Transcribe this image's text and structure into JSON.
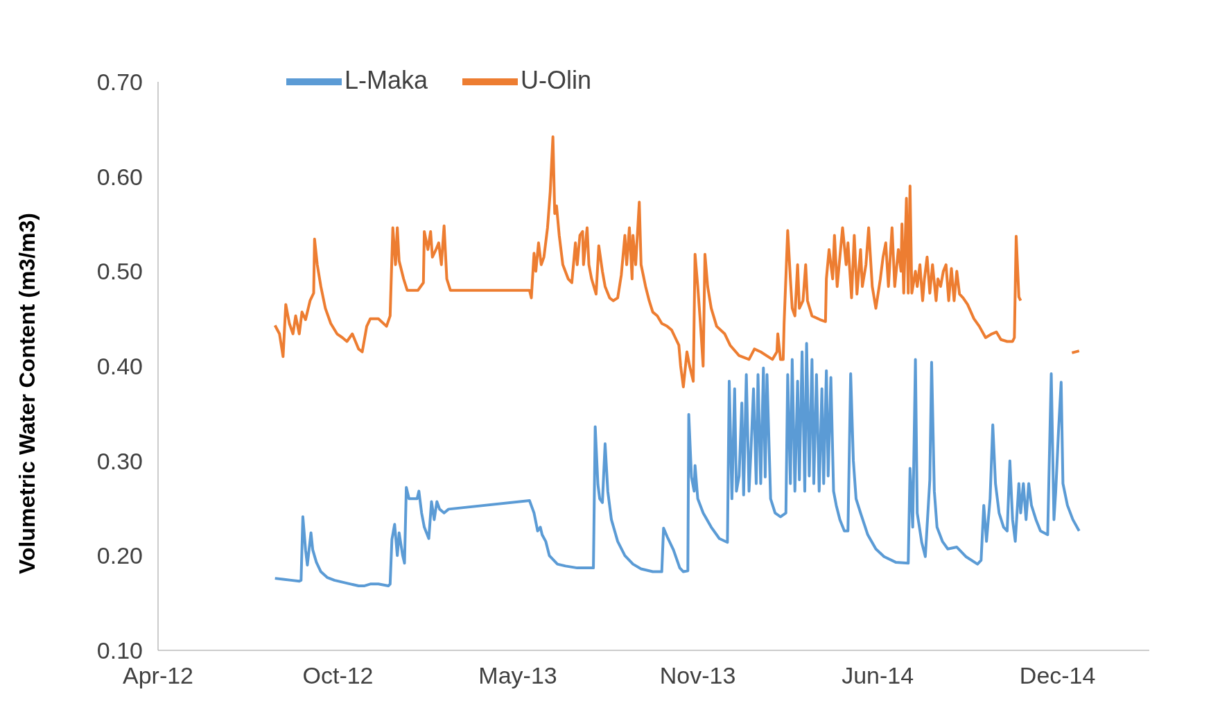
{
  "chart_data": {
    "type": "line",
    "ylabel": "Volumetric Water Content (m3/m3)",
    "xlim": [
      "2012-04-01",
      "2015-04-08"
    ],
    "xticks": [
      {
        "value": "2012-04-01",
        "label": "Apr-12"
      },
      {
        "value": "2012-10-18",
        "label": "Oct-12"
      },
      {
        "value": "2013-05-06",
        "label": "May-13"
      },
      {
        "value": "2013-11-22",
        "label": "Nov-13"
      },
      {
        "value": "2014-06-10",
        "label": "Jun-14"
      },
      {
        "value": "2014-12-27",
        "label": "Dec-14"
      }
    ],
    "ylim": [
      0.1,
      0.7
    ],
    "yticks": [
      {
        "value": 0.1,
        "label": "0.10"
      },
      {
        "value": 0.2,
        "label": "0.20"
      },
      {
        "value": 0.3,
        "label": "0.30"
      },
      {
        "value": 0.4,
        "label": "0.40"
      },
      {
        "value": 0.5,
        "label": "0.50"
      },
      {
        "value": 0.6,
        "label": "0.60"
      },
      {
        "value": 0.7,
        "label": "0.70"
      }
    ],
    "grid": false,
    "legend": "top",
    "marker": "none",
    "line_style": "solid",
    "series": [
      {
        "name": "L-Maka",
        "color": "#5b9bd5",
        "x": [
          "2012-08-09",
          "2012-08-18",
          "2012-08-27",
          "2012-09-05",
          "2012-09-07",
          "2012-09-09",
          "2012-09-12",
          "2012-09-14",
          "2012-09-18",
          "2012-09-20",
          "2012-09-24",
          "2012-09-29",
          "2012-10-06",
          "2012-10-14",
          "2012-10-23",
          "2012-11-01",
          "2012-11-10",
          "2012-11-16",
          "2012-11-23",
          "2012-12-02",
          "2012-12-13",
          "2012-12-15",
          "2012-12-17",
          "2012-12-20",
          "2012-12-23",
          "2012-12-25",
          "2012-12-29",
          "2012-12-31",
          "2013-01-02",
          "2013-01-05",
          "2013-01-09",
          "2013-01-14",
          "2013-01-16",
          "2013-01-19",
          "2013-01-22",
          "2013-01-27",
          "2013-01-30",
          "2013-02-02",
          "2013-02-05",
          "2013-02-08",
          "2013-02-13",
          "2013-02-18",
          "2013-05-19",
          "2013-05-24",
          "2013-05-28",
          "2013-05-31",
          "2013-06-02",
          "2013-06-06",
          "2013-06-10",
          "2013-06-19",
          "2013-06-28",
          "2013-07-11",
          "2013-07-29",
          "2013-07-31",
          "2013-08-03",
          "2013-08-05",
          "2013-08-08",
          "2013-08-11",
          "2013-08-14",
          "2013-08-18",
          "2013-08-25",
          "2013-09-02",
          "2013-09-11",
          "2013-09-20",
          "2013-10-03",
          "2013-10-13",
          "2013-10-15",
          "2013-10-19",
          "2013-10-26",
          "2013-11-02",
          "2013-11-06",
          "2013-11-11",
          "2013-11-12",
          "2013-11-15",
          "2013-11-18",
          "2013-11-19",
          "2013-11-22",
          "2013-11-28",
          "2013-12-07",
          "2013-12-16",
          "2013-12-25",
          "2013-12-27",
          "2013-12-30",
          "2014-01-02",
          "2014-01-04",
          "2014-01-07",
          "2014-01-10",
          "2014-01-12",
          "2014-01-15",
          "2014-01-18",
          "2014-01-20",
          "2014-01-23",
          "2014-01-26",
          "2014-01-28",
          "2014-01-31",
          "2014-02-03",
          "2014-02-05",
          "2014-02-07",
          "2014-02-11",
          "2014-02-16",
          "2014-02-22",
          "2014-02-28",
          "2014-03-02",
          "2014-03-05",
          "2014-03-07",
          "2014-03-10",
          "2014-03-13",
          "2014-03-15",
          "2014-03-18",
          "2014-03-21",
          "2014-03-23",
          "2014-03-26",
          "2014-03-29",
          "2014-03-31",
          "2014-04-03",
          "2014-04-06",
          "2014-04-09",
          "2014-04-11",
          "2014-04-14",
          "2014-04-16",
          "2014-04-19",
          "2014-04-22",
          "2014-04-25",
          "2014-04-29",
          "2014-05-04",
          "2014-05-08",
          "2014-05-11",
          "2014-05-14",
          "2014-05-17",
          "2014-05-22",
          "2014-05-30",
          "2014-06-08",
          "2014-06-17",
          "2014-06-30",
          "2014-07-14",
          "2014-07-16",
          "2014-07-19",
          "2014-07-22",
          "2014-07-24",
          "2014-07-29",
          "2014-08-02",
          "2014-08-07",
          "2014-08-09",
          "2014-08-12",
          "2014-08-15",
          "2014-08-21",
          "2014-08-27",
          "2014-09-06",
          "2014-09-16",
          "2014-09-29",
          "2014-10-03",
          "2014-10-06",
          "2014-10-09",
          "2014-10-13",
          "2014-10-16",
          "2014-10-19",
          "2014-10-23",
          "2014-10-28",
          "2014-11-01",
          "2014-11-04",
          "2014-11-07",
          "2014-11-10",
          "2014-11-14",
          "2014-11-16",
          "2014-11-19",
          "2014-11-22",
          "2014-11-25",
          "2014-11-28",
          "2014-12-03",
          "2014-12-08",
          "2014-12-16",
          "2014-12-20",
          "2014-12-23",
          "2014-12-25",
          "2014-12-28",
          "2014-12-31",
          "2015-01-02",
          "2015-01-07",
          "2015-01-13",
          "2015-01-20"
        ],
        "values": [
          0.176,
          0.175,
          0.174,
          0.173,
          0.174,
          0.241,
          0.206,
          0.19,
          0.224,
          0.206,
          0.193,
          0.183,
          0.177,
          0.174,
          0.172,
          0.17,
          0.168,
          0.168,
          0.17,
          0.17,
          0.168,
          0.17,
          0.217,
          0.233,
          0.2,
          0.224,
          0.2,
          0.192,
          0.272,
          0.26,
          0.26,
          0.26,
          0.268,
          0.245,
          0.23,
          0.218,
          0.257,
          0.238,
          0.257,
          0.249,
          0.245,
          0.249,
          0.258,
          0.245,
          0.226,
          0.23,
          0.222,
          0.215,
          0.2,
          0.191,
          0.189,
          0.187,
          0.187,
          0.336,
          0.275,
          0.26,
          0.256,
          0.318,
          0.268,
          0.238,
          0.215,
          0.2,
          0.191,
          0.186,
          0.183,
          0.183,
          0.229,
          0.22,
          0.206,
          0.187,
          0.183,
          0.184,
          0.349,
          0.283,
          0.268,
          0.295,
          0.26,
          0.245,
          0.23,
          0.218,
          0.214,
          0.384,
          0.26,
          0.376,
          0.268,
          0.284,
          0.361,
          0.264,
          0.391,
          0.268,
          0.307,
          0.376,
          0.276,
          0.391,
          0.276,
          0.398,
          0.283,
          0.391,
          0.26,
          0.245,
          0.241,
          0.245,
          0.391,
          0.276,
          0.407,
          0.268,
          0.384,
          0.28,
          0.415,
          0.268,
          0.424,
          0.284,
          0.407,
          0.276,
          0.391,
          0.268,
          0.376,
          0.276,
          0.395,
          0.284,
          0.388,
          0.268,
          0.253,
          0.238,
          0.226,
          0.226,
          0.392,
          0.3,
          0.26,
          0.245,
          0.222,
          0.207,
          0.199,
          0.193,
          0.192,
          0.292,
          0.23,
          0.407,
          0.245,
          0.214,
          0.199,
          0.28,
          0.404,
          0.268,
          0.23,
          0.215,
          0.207,
          0.209,
          0.199,
          0.191,
          0.195,
          0.253,
          0.215,
          0.26,
          0.338,
          0.276,
          0.245,
          0.23,
          0.226,
          0.3,
          0.238,
          0.215,
          0.276,
          0.245,
          0.276,
          0.238,
          0.276,
          0.253,
          0.238,
          0.226,
          0.222,
          0.392,
          0.238,
          0.268,
          0.33,
          0.383,
          0.276,
          0.253,
          0.238,
          0.226
        ]
      },
      {
        "name": "U-Olin",
        "color": "#ed7d31",
        "x": [
          "2012-08-09",
          "2012-08-14",
          "2012-08-18",
          "2012-08-21",
          "2012-08-25",
          "2012-08-29",
          "2012-09-01",
          "2012-09-05",
          "2012-09-08",
          "2012-09-12",
          "2012-09-17",
          "2012-09-21",
          "2012-09-22",
          "2012-09-25",
          "2012-09-29",
          "2012-10-04",
          "2012-10-10",
          "2012-10-17",
          "2012-10-23",
          "2012-10-28",
          "2012-11-03",
          "2012-11-10",
          "2012-11-14",
          "2012-11-19",
          "2012-11-23",
          "2012-12-02",
          "2012-12-11",
          "2012-12-15",
          "2012-12-18",
          "2012-12-21",
          "2012-12-23",
          "2012-12-25",
          "2012-12-30",
          "2013-01-03",
          "2013-01-15",
          "2013-01-21",
          "2013-01-22",
          "2013-01-26",
          "2013-01-29",
          "2013-01-31",
          "2013-02-04",
          "2013-02-07",
          "2013-02-10",
          "2013-02-13",
          "2013-02-16",
          "2013-02-20",
          "2013-05-19",
          "2013-05-21",
          "2013-05-24",
          "2013-05-26",
          "2013-05-29",
          "2013-06-01",
          "2013-06-04",
          "2013-06-08",
          "2013-06-11",
          "2013-06-14",
          "2013-06-16",
          "2013-06-18",
          "2013-06-21",
          "2013-06-25",
          "2013-07-01",
          "2013-07-05",
          "2013-07-09",
          "2013-07-11",
          "2013-07-14",
          "2013-07-17",
          "2013-07-18",
          "2013-07-22",
          "2013-07-24",
          "2013-07-27",
          "2013-08-01",
          "2013-08-04",
          "2013-08-08",
          "2013-08-11",
          "2013-08-16",
          "2013-08-20",
          "2013-08-25",
          "2013-08-29",
          "2013-09-02",
          "2013-09-04",
          "2013-09-07",
          "2013-09-10",
          "2013-09-11",
          "2013-09-14",
          "2013-09-18",
          "2013-09-20",
          "2013-09-25",
          "2013-09-29",
          "2013-10-03",
          "2013-10-08",
          "2013-10-13",
          "2013-10-19",
          "2013-10-24",
          "2013-10-28",
          "2013-11-01",
          "2013-11-03",
          "2013-11-06",
          "2013-11-10",
          "2013-11-13",
          "2013-11-17",
          "2013-11-19",
          "2013-11-22",
          "2013-11-25",
          "2013-11-28",
          "2013-11-30",
          "2013-12-03",
          "2013-12-07",
          "2013-12-13",
          "2013-12-22",
          "2013-12-28",
          "2014-01-07",
          "2014-01-18",
          "2014-01-24",
          "2014-01-31",
          "2014-02-13",
          "2014-02-18",
          "2014-02-19",
          "2014-02-22",
          "2014-02-25",
          "2014-02-26",
          "2014-03-02",
          "2014-03-05",
          "2014-03-07",
          "2014-03-10",
          "2014-03-13",
          "2014-03-15",
          "2014-03-19",
          "2014-03-22",
          "2014-03-24",
          "2014-03-29",
          "2014-04-07",
          "2014-04-13",
          "2014-04-14",
          "2014-04-17",
          "2014-04-21",
          "2014-04-23",
          "2014-04-26",
          "2014-04-29",
          "2014-05-02",
          "2014-05-06",
          "2014-05-08",
          "2014-05-12",
          "2014-05-15",
          "2014-05-18",
          "2014-05-22",
          "2014-05-24",
          "2014-05-28",
          "2014-05-31",
          "2014-06-04",
          "2014-06-08",
          "2014-06-13",
          "2014-06-16",
          "2014-06-19",
          "2014-06-22",
          "2014-06-26",
          "2014-06-29",
          "2014-07-03",
          "2014-07-06",
          "2014-07-07",
          "2014-07-09",
          "2014-07-12",
          "2014-07-14",
          "2014-07-16",
          "2014-07-18",
          "2014-07-22",
          "2014-07-24",
          "2014-07-27",
          "2014-07-30",
          "2014-08-01",
          "2014-08-04",
          "2014-08-07",
          "2014-08-10",
          "2014-08-14",
          "2014-08-16",
          "2014-08-19",
          "2014-08-22",
          "2014-08-25",
          "2014-08-28",
          "2014-08-31",
          "2014-09-03",
          "2014-09-06",
          "2014-09-09",
          "2014-09-13",
          "2014-09-18",
          "2014-09-25",
          "2014-10-01",
          "2014-10-08",
          "2014-10-15",
          "2014-10-20",
          "2014-10-25",
          "2014-11-01",
          "2014-11-07",
          "2014-11-09",
          "2014-11-11",
          "2014-11-14",
          "2014-11-16",
          "2014-12-15",
          "2015-01-12",
          "2015-01-20"
        ],
        "values": [
          0.443,
          0.434,
          0.41,
          0.465,
          0.445,
          0.434,
          0.453,
          0.434,
          0.457,
          0.449,
          0.469,
          0.477,
          0.534,
          0.507,
          0.484,
          0.461,
          0.445,
          0.434,
          0.43,
          0.426,
          0.434,
          0.418,
          0.415,
          0.442,
          0.45,
          0.45,
          0.442,
          0.453,
          0.546,
          0.507,
          0.546,
          0.511,
          0.492,
          0.48,
          0.48,
          0.488,
          0.542,
          0.523,
          0.542,
          0.515,
          0.523,
          0.53,
          0.507,
          0.548,
          0.492,
          0.48,
          0.48,
          0.472,
          0.519,
          0.5,
          0.53,
          0.507,
          0.515,
          0.546,
          0.584,
          0.642,
          0.561,
          0.569,
          0.538,
          0.507,
          0.492,
          0.488,
          0.53,
          0.507,
          0.538,
          0.542,
          0.507,
          0.546,
          0.507,
          0.492,
          0.476,
          0.527,
          0.5,
          0.484,
          0.472,
          0.469,
          0.472,
          0.496,
          0.538,
          0.507,
          0.546,
          0.492,
          0.538,
          0.507,
          0.573,
          0.507,
          0.484,
          0.469,
          0.457,
          0.453,
          0.445,
          0.442,
          0.438,
          0.43,
          0.422,
          0.4,
          0.378,
          0.415,
          0.4,
          0.384,
          0.518,
          0.484,
          0.445,
          0.4,
          0.518,
          0.484,
          0.461,
          0.442,
          0.434,
          0.422,
          0.411,
          0.407,
          0.418,
          0.415,
          0.407,
          0.415,
          0.434,
          0.407,
          0.407,
          0.445,
          0.543,
          0.492,
          0.461,
          0.453,
          0.507,
          0.461,
          0.469,
          0.507,
          0.469,
          0.453,
          0.449,
          0.447,
          0.492,
          0.523,
          0.492,
          0.538,
          0.484,
          0.515,
          0.546,
          0.507,
          0.53,
          0.472,
          0.538,
          0.476,
          0.523,
          0.484,
          0.507,
          0.546,
          0.484,
          0.461,
          0.492,
          0.515,
          0.53,
          0.484,
          0.546,
          0.484,
          0.523,
          0.5,
          0.55,
          0.477,
          0.577,
          0.477,
          0.59,
          0.477,
          0.5,
          0.484,
          0.507,
          0.469,
          0.492,
          0.515,
          0.477,
          0.507,
          0.469,
          0.492,
          0.484,
          0.5,
          0.507,
          0.469,
          0.503,
          0.469,
          0.5,
          0.476,
          0.472,
          0.465,
          0.45,
          0.442,
          0.43,
          0.434,
          0.436,
          0.428,
          0.426,
          0.426,
          0.43,
          0.537,
          0.473,
          0.469,
          null,
          0.414,
          0.416
        ]
      }
    ]
  }
}
